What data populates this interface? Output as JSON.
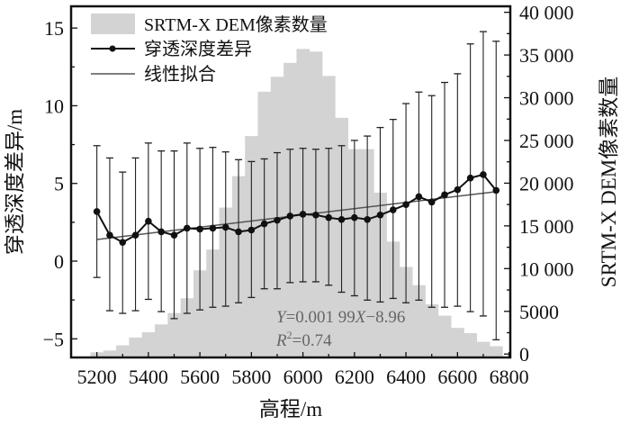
{
  "chart_data": {
    "type": "bar+line",
    "xlabel": "高程/m",
    "ylabel_left": "穿透深度差异/m",
    "ylabel_right": "SRTM-X DEM像素数量",
    "xlim": [
      5100,
      6805
    ],
    "ylim_left": [
      -6.2,
      16.4
    ],
    "ylim_right": [
      -400,
      40700
    ],
    "x_ticks": [
      5200,
      5400,
      5600,
      5800,
      6000,
      6200,
      6400,
      6600,
      6800
    ],
    "x_tick_labels": [
      "5200",
      "5400",
      "5600",
      "5800",
      "6000",
      "6200",
      "6400",
      "6600",
      "6800"
    ],
    "left_ticks": [
      15,
      10,
      5,
      0,
      -5
    ],
    "left_tick_labels": [
      "15",
      "10",
      "5",
      "0",
      "−5"
    ],
    "right_ticks": [
      40000,
      35000,
      30000,
      25000,
      20000,
      15000,
      10000,
      5000,
      0
    ],
    "right_tick_labels": [
      "40 000",
      "35 000",
      "30 000",
      "25 000",
      "20 000",
      "15 000",
      "10 000",
      "5000",
      "0"
    ],
    "grid": false,
    "legend_position": "top-left",
    "legend": [
      "SRTM-X DEM像素数量",
      "穿透深度差异",
      "线性拟合"
    ],
    "x": [
      5200,
      5250,
      5300,
      5350,
      5400,
      5450,
      5500,
      5550,
      5600,
      5650,
      5700,
      5750,
      5800,
      5850,
      5900,
      5950,
      6000,
      6050,
      6100,
      6150,
      6200,
      6250,
      6300,
      6350,
      6400,
      6450,
      6500,
      6550,
      6600,
      6650,
      6700,
      6750
    ],
    "series": [
      {
        "name": "SRTM-X DEM像素数量",
        "type": "bar",
        "axis": "right",
        "values": [
          200,
          410,
          1020,
          1940,
          2550,
          3470,
          4800,
          6530,
          9800,
          12240,
          17140,
          20820,
          25510,
          30710,
          32450,
          34080,
          35710,
          35400,
          32550,
          27650,
          23980,
          23980,
          18880,
          13160,
          10200,
          8060,
          5820,
          4490,
          3060,
          2450,
          1430,
          920
        ]
      },
      {
        "name": "穿透深度差异",
        "type": "line",
        "axis": "left",
        "values": [
          3.19,
          1.67,
          1.21,
          1.67,
          2.57,
          1.89,
          1.67,
          2.12,
          2.06,
          2.12,
          2.18,
          1.89,
          2.0,
          2.4,
          2.63,
          2.9,
          3.02,
          2.97,
          2.8,
          2.68,
          2.8,
          2.68,
          2.97,
          3.3,
          3.64,
          4.15,
          3.8,
          4.27,
          4.6,
          5.35,
          5.57,
          4.55
        ],
        "err_upper": [
          7.43,
          6.64,
          5.73,
          6.64,
          7.6,
          7.09,
          7.09,
          7.6,
          7.26,
          7.32,
          7.03,
          6.53,
          6.41,
          6.58,
          6.98,
          7.2,
          7.26,
          7.2,
          7.26,
          7.43,
          7.77,
          8.05,
          8.6,
          9.12,
          10.14,
          10.88,
          10.65,
          11.5,
          12.06,
          13.98,
          14.77,
          14.15
        ],
        "err_lower": [
          -1.05,
          -3.19,
          -3.36,
          -3.19,
          -2.46,
          -3.25,
          -3.7,
          -3.36,
          -3.14,
          -2.97,
          -2.9,
          -2.68,
          -2.34,
          -1.78,
          -1.78,
          -1.38,
          -1.33,
          -1.33,
          -1.55,
          -2.0,
          -2.23,
          -2.51,
          -2.63,
          -2.4,
          -2.68,
          -2.51,
          -2.97,
          -2.97,
          -2.9,
          -3.25,
          -3.53,
          -5.06
        ]
      },
      {
        "name": "线性拟合",
        "type": "line",
        "axis": "left",
        "slope": 0.00199,
        "intercept": -8.96,
        "x_range": [
          5200,
          6750
        ]
      }
    ],
    "annotations": {
      "equation_prefix": "Y",
      "equation_mid": "=0.001 99",
      "equation_var": "X",
      "equation_suffix": "−8.96",
      "r2_prefix": "R",
      "r2_sup": "2",
      "r2_suffix": "=0.74"
    },
    "colors": {
      "bars": "#d3d3d3",
      "line": "#111111",
      "fit": "#555555",
      "annot": "#666666"
    }
  }
}
